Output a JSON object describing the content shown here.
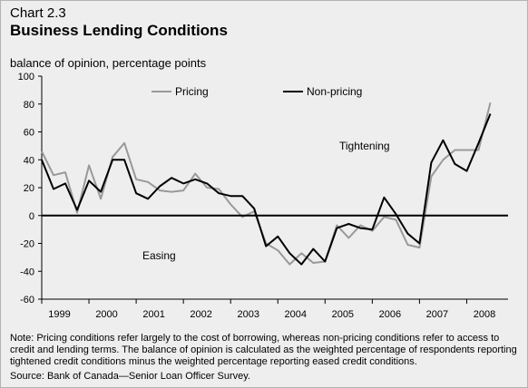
{
  "header": {
    "chart_label": "Chart 2.3",
    "title": "Business Lending Conditions",
    "subtitle": "balance of opinion, percentage points"
  },
  "footer": {
    "note": "Note: Pricing conditions refer largely to the cost of borrowing, whereas non-pricing conditions refer to access to credit and lending terms. The balance of opinion is calculated as the weighted percentage of respondents reporting tightened credit conditions minus the weighted percentage reporting eased credit conditions.",
    "source": "Source: Bank of Canada—Senior Loan Officer Survey."
  },
  "colors": {
    "background": "#eeeeee",
    "pricing": "#999999",
    "non_pricing": "#000000",
    "zero_line": "#000000"
  },
  "chart_data": {
    "type": "line",
    "ylim": [
      -60,
      100
    ],
    "yticks": [
      -60,
      -40,
      -20,
      0,
      20,
      40,
      60,
      80,
      100
    ],
    "xlim": [
      1999.0,
      2008.875
    ],
    "xticks": [
      "1999",
      "2000",
      "2001",
      "2002",
      "2003",
      "2004",
      "2005",
      "2006",
      "2007",
      "2008"
    ],
    "grid": false,
    "legend_position": "top-left",
    "annotations": [
      {
        "text": "Tightening",
        "x": 2006.2,
        "y": 43
      },
      {
        "text": "Easing",
        "x": 2000.9,
        "y": -28
      }
    ],
    "x": [
      "1999Q1",
      "1999Q2",
      "1999Q3",
      "1999Q4",
      "2000Q1",
      "2000Q2",
      "2000Q3",
      "2000Q4",
      "2001Q1",
      "2001Q2",
      "2001Q3",
      "2001Q4",
      "2002Q1",
      "2002Q2",
      "2002Q3",
      "2002Q4",
      "2003Q1",
      "2003Q2",
      "2003Q3",
      "2003Q4",
      "2004Q1",
      "2004Q2",
      "2004Q3",
      "2004Q4",
      "2005Q1",
      "2005Q2",
      "2005Q3",
      "2005Q4",
      "2006Q1",
      "2006Q2",
      "2006Q3",
      "2006Q4",
      "2007Q1",
      "2007Q2",
      "2007Q3",
      "2007Q4",
      "2008Q1",
      "2008Q2",
      "2008Q3"
    ],
    "series": [
      {
        "name": "Pricing",
        "values": [
          46,
          29,
          31,
          2,
          36,
          12,
          42,
          52,
          26,
          24,
          18,
          17,
          18,
          30,
          20,
          19,
          8,
          -1,
          3,
          -20,
          -25,
          -35,
          -27,
          -34,
          -33,
          -7,
          -16,
          -7,
          -11,
          -1,
          -3,
          -21,
          -23,
          28,
          40,
          47,
          47,
          47,
          81
        ]
      },
      {
        "name": "Non-pricing",
        "values": [
          40,
          19,
          23,
          4,
          25,
          17,
          40,
          40,
          16,
          12,
          21,
          27,
          23,
          26,
          23,
          16,
          14,
          14,
          5,
          -22,
          -15,
          -27,
          -35,
          -24,
          -33,
          -9,
          -6,
          -9,
          -10,
          13,
          1,
          -13,
          -20,
          38,
          54,
          37,
          32,
          52,
          73
        ]
      }
    ]
  }
}
